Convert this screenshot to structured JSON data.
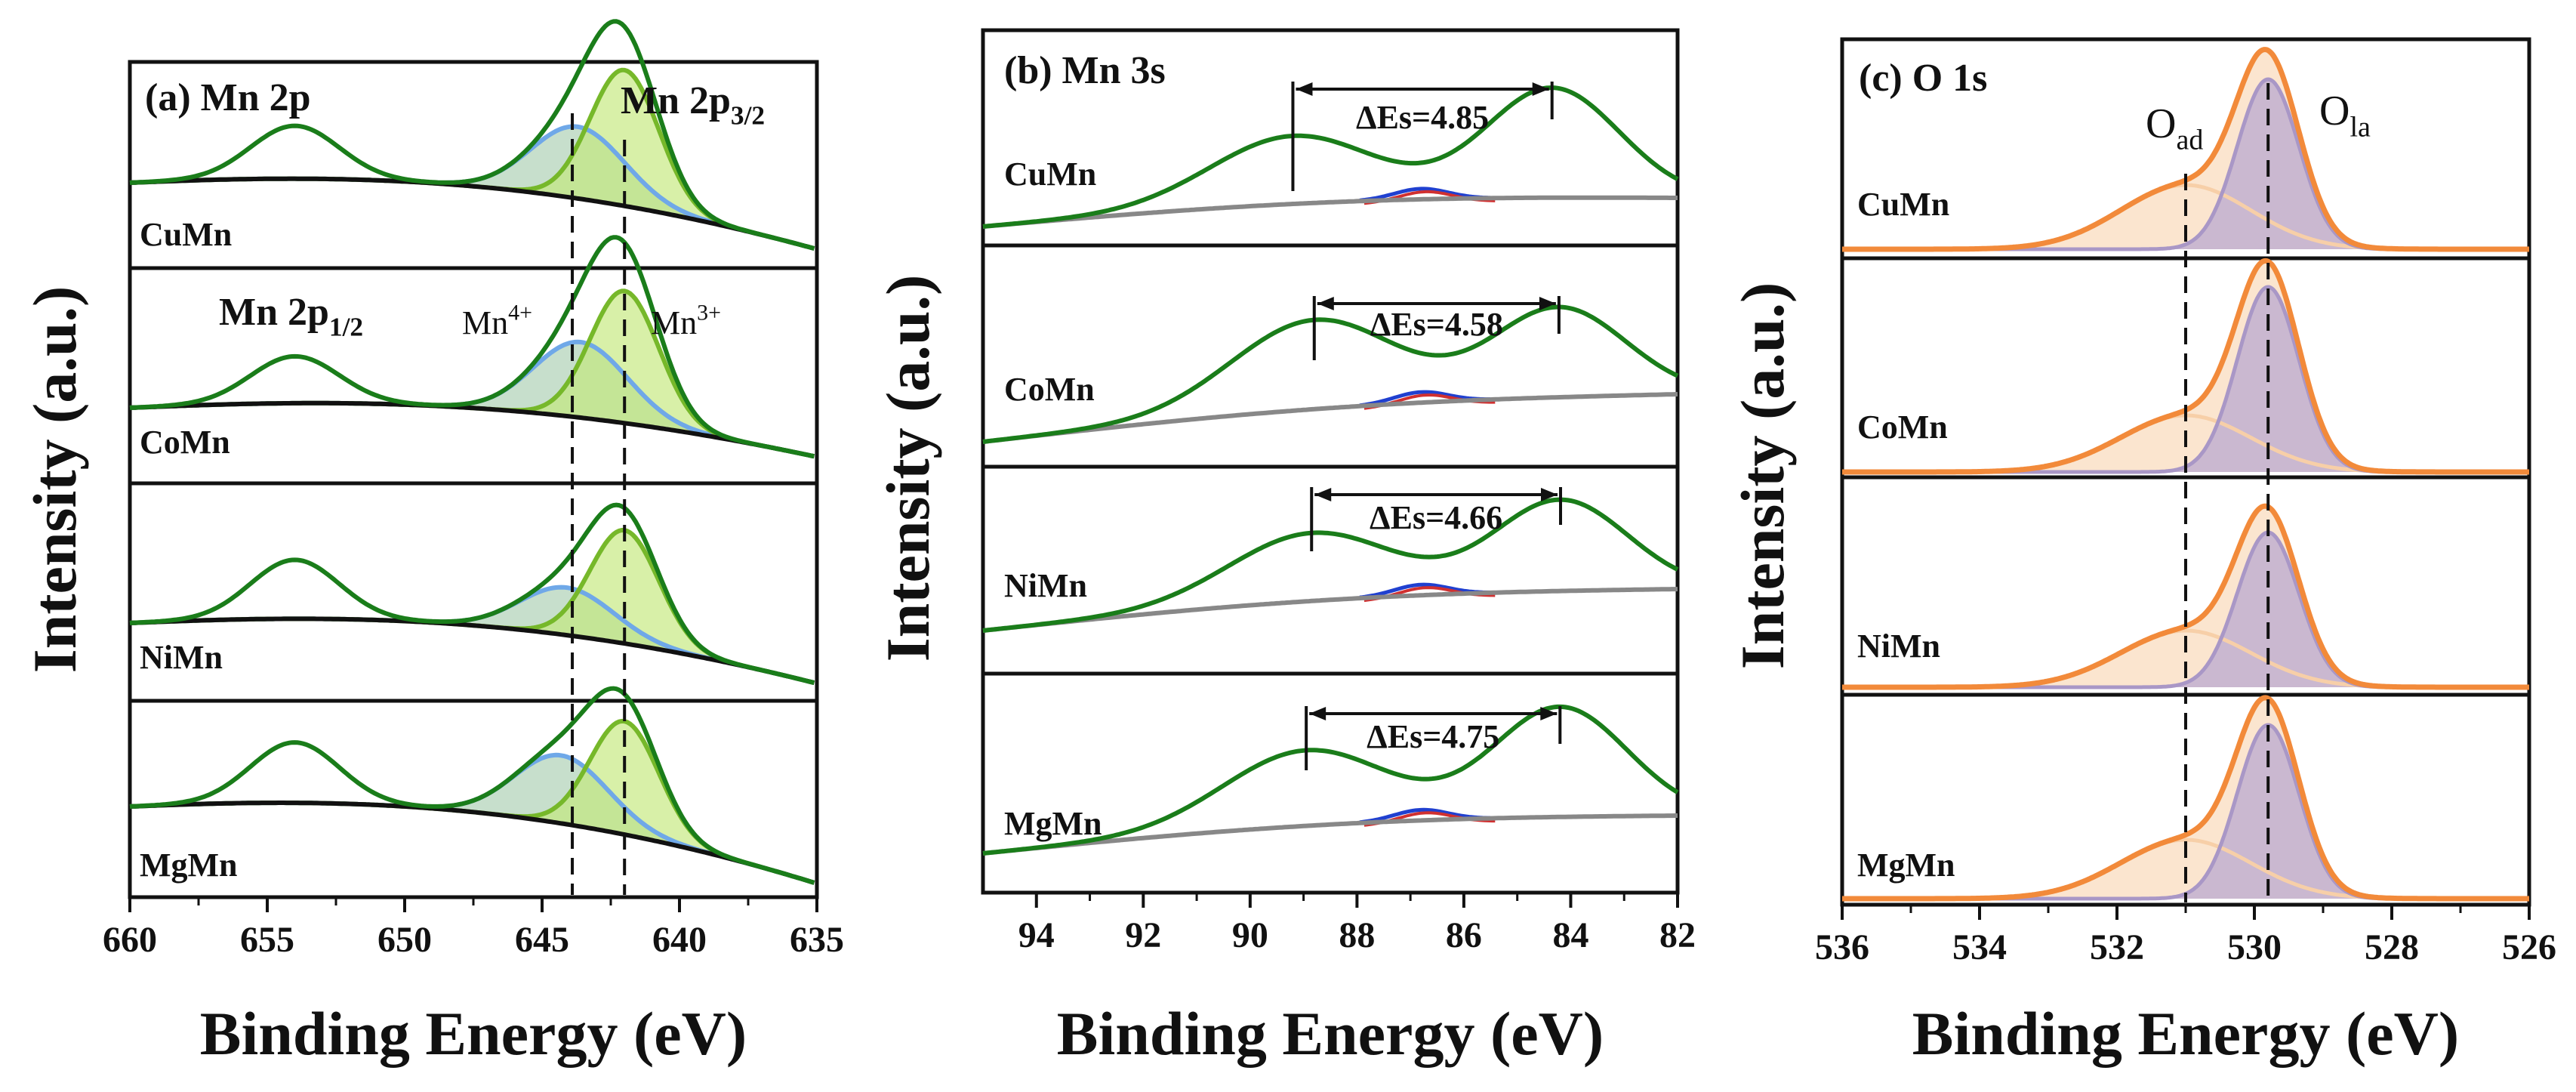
{
  "chart_data": [
    {
      "type": "line",
      "panel": "a",
      "title": "(a) Mn 2p",
      "xlabel": "Binding Energy (eV)",
      "ylabel": "Intensity (a.u.)",
      "xlim": [
        660,
        635
      ],
      "xticks": [
        660,
        655,
        650,
        645,
        640,
        635
      ],
      "samples": [
        "CuMn",
        "CoMn",
        "NiMn",
        "MgMn"
      ],
      "peak_labels": {
        "p32_main": "Mn 2p",
        "p32_sub": "3/2",
        "p12_main": "Mn 2p",
        "p12_sub": "1/2",
        "mn4_main": "Mn",
        "mn4_sup": "4+",
        "mn3_main": "Mn",
        "mn3_sup": "3+"
      },
      "components": [
        {
          "name": "Mn 2p1/2",
          "center": 654.0,
          "color": "#1a7d1a"
        },
        {
          "name": "Mn4+",
          "center": 643.8,
          "color": "#6fa8e8"
        },
        {
          "name": "Mn3+",
          "center": 642.0,
          "color": "#a6d96a"
        }
      ],
      "reference_lines": [
        643.9,
        642.0
      ]
    },
    {
      "type": "line",
      "panel": "b",
      "title": "(b) Mn 3s",
      "xlabel": "Binding Energy (eV)",
      "ylabel": "Intensity (a.u.)",
      "xlim": [
        95,
        82
      ],
      "xticks": [
        94,
        92,
        90,
        88,
        86,
        84,
        82
      ],
      "samples": [
        "CuMn",
        "CoMn",
        "NiMn",
        "MgMn"
      ],
      "delta_es": [
        "ΔEs=4.85",
        "ΔEs=4.58",
        "ΔEs=4.66",
        "ΔEs=4.75"
      ],
      "peak_pairs": [
        [
          89.2,
          84.35
        ],
        [
          88.8,
          84.22
        ],
        [
          88.85,
          84.19
        ],
        [
          88.95,
          84.2
        ]
      ]
    },
    {
      "type": "line",
      "panel": "c",
      "title": "(c) O 1s",
      "xlabel": "Binding Energy (eV)",
      "ylabel": "Intensity (a.u.)",
      "xlim": [
        536,
        526
      ],
      "xticks": [
        536,
        534,
        532,
        530,
        528,
        526
      ],
      "samples": [
        "CuMn",
        "CoMn",
        "NiMn",
        "MgMn"
      ],
      "peak_labels": {
        "ad_main": "O",
        "ad_sub": "ad",
        "la_main": "O",
        "la_sub": "la"
      },
      "components": [
        {
          "name": "O ad",
          "center": 531.0,
          "color": "#f7cfa8"
        },
        {
          "name": "O la",
          "center": 529.8,
          "color": "#b9a8d0"
        }
      ],
      "reference_lines": [
        531.0,
        529.8
      ]
    }
  ],
  "colors": {
    "envelope": "#1a7d1a",
    "background_a": "#111111",
    "background_b": "#888888",
    "o_envelope": "#f28a3a"
  }
}
